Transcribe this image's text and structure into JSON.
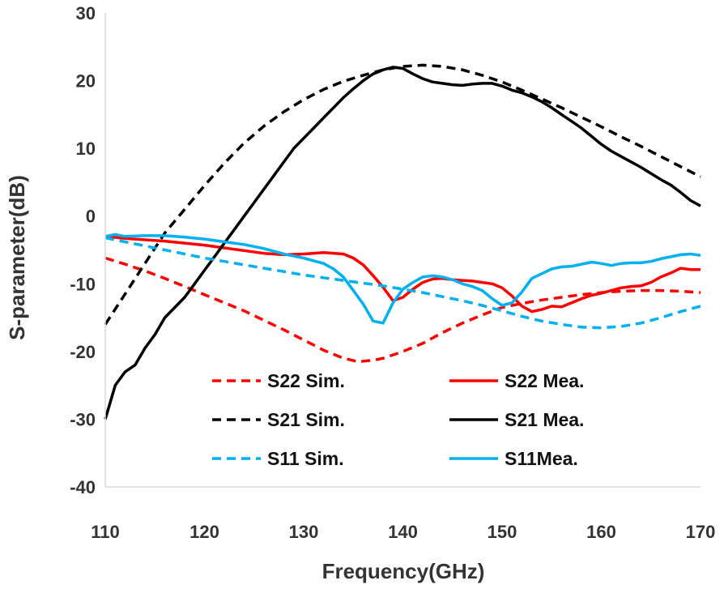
{
  "chart_data": {
    "type": "line",
    "xlabel": "Frequency(GHz)",
    "ylabel": "S-parameter(dB)",
    "xlim": [
      110,
      170
    ],
    "ylim": [
      -40,
      30
    ],
    "xticks": [
      110,
      120,
      130,
      140,
      150,
      160,
      170
    ],
    "yticks": [
      30,
      20,
      10,
      0,
      -10,
      -20,
      -30,
      -40
    ],
    "grid": false,
    "legend_position": "bottom-center",
    "series": [
      {
        "name": "S22 Sim.",
        "color": "#ff0000",
        "dash": true,
        "x": [
          110,
          112,
          114,
          116,
          118,
          120,
          122,
          124,
          126,
          128,
          130,
          132,
          134,
          135.5,
          137,
          138,
          140,
          142,
          144,
          146,
          148,
          150,
          152,
          154,
          156,
          158,
          160,
          162,
          164,
          166,
          168,
          170
        ],
        "y": [
          -6.2,
          -7.1,
          -8.1,
          -9.2,
          -10.4,
          -11.6,
          -12.8,
          -14.0,
          -15.4,
          -16.8,
          -18.3,
          -19.8,
          -21.0,
          -21.5,
          -21.3,
          -21.0,
          -20.0,
          -18.8,
          -17.2,
          -15.8,
          -14.6,
          -13.5,
          -12.9,
          -12.4,
          -12.0,
          -11.6,
          -11.3,
          -11.1,
          -11.0,
          -11.0,
          -11.1,
          -11.3
        ]
      },
      {
        "name": "S22 Mea.",
        "color": "#ff0000",
        "dash": false,
        "x": [
          110,
          112,
          114,
          116,
          118,
          120,
          122,
          124,
          126,
          128,
          130,
          132,
          134,
          135,
          136,
          137,
          138,
          139,
          140,
          141,
          142,
          143,
          144,
          145,
          146,
          147,
          148,
          149,
          150,
          151,
          152,
          153,
          154,
          155,
          156,
          157,
          158,
          159,
          160,
          161,
          162,
          163,
          164,
          165,
          166,
          167,
          168,
          169,
          170
        ],
        "y": [
          -3.0,
          -3.3,
          -3.5,
          -3.7,
          -4.0,
          -4.3,
          -4.7,
          -5.1,
          -5.5,
          -5.7,
          -5.6,
          -5.4,
          -5.6,
          -6.2,
          -7.2,
          -8.8,
          -10.5,
          -12.5,
          -12.0,
          -10.8,
          -9.8,
          -9.3,
          -9.2,
          -9.4,
          -9.5,
          -9.6,
          -9.8,
          -10.0,
          -10.6,
          -11.8,
          -13.3,
          -14.1,
          -13.8,
          -13.3,
          -13.4,
          -12.8,
          -12.2,
          -11.7,
          -11.4,
          -11.0,
          -10.6,
          -10.4,
          -10.3,
          -9.8,
          -9.0,
          -8.4,
          -7.7,
          -7.9,
          -7.9
        ]
      },
      {
        "name": "S21 Sim.",
        "color": "#000000",
        "dash": true,
        "x": [
          110,
          112,
          114,
          116,
          118,
          120,
          122,
          124,
          126,
          128,
          130,
          132,
          134,
          136,
          138,
          140,
          142,
          144,
          146,
          148,
          150,
          152,
          154,
          156,
          158,
          160,
          162,
          164,
          166,
          168,
          170
        ],
        "y": [
          -16.0,
          -11.5,
          -7.0,
          -2.5,
          1.0,
          4.5,
          7.8,
          10.8,
          13.3,
          15.4,
          17.2,
          18.7,
          19.9,
          20.8,
          21.6,
          22.1,
          22.3,
          22.1,
          21.6,
          20.8,
          19.8,
          18.6,
          17.3,
          16.0,
          14.6,
          13.2,
          11.7,
          10.3,
          8.8,
          7.3,
          5.8
        ]
      },
      {
        "name": "S21 Mea.",
        "color": "#000000",
        "dash": false,
        "x": [
          110,
          111,
          112,
          113,
          114,
          115,
          116,
          117,
          118,
          119,
          120,
          121,
          122,
          123,
          124,
          125,
          126,
          127,
          128,
          129,
          130,
          131,
          132,
          133,
          134,
          135,
          136,
          137,
          138,
          139,
          140,
          141,
          142,
          143,
          144,
          145,
          146,
          147,
          148,
          149,
          150,
          151,
          152,
          153,
          154,
          155,
          156,
          157,
          158,
          159,
          160,
          161,
          162,
          163,
          164,
          165,
          166,
          167,
          168,
          169,
          170
        ],
        "y": [
          -30.0,
          -25.0,
          -23.0,
          -22.0,
          -19.5,
          -17.5,
          -15.0,
          -13.5,
          -12.0,
          -10.0,
          -8.0,
          -6.0,
          -4.0,
          -2.0,
          0.0,
          2.0,
          4.0,
          6.0,
          8.0,
          10.0,
          11.5,
          13.0,
          14.5,
          16.0,
          17.5,
          18.8,
          20.0,
          21.0,
          21.6,
          22.0,
          21.8,
          21.0,
          20.3,
          19.8,
          19.6,
          19.4,
          19.3,
          19.5,
          19.6,
          19.6,
          19.2,
          18.6,
          18.2,
          17.6,
          16.9,
          16.0,
          15.0,
          14.0,
          13.0,
          11.8,
          10.6,
          9.6,
          8.8,
          8.0,
          7.2,
          6.3,
          5.4,
          4.6,
          3.5,
          2.3,
          1.5
        ]
      },
      {
        "name": "S11 Sim.",
        "color": "#00b0f0",
        "dash": true,
        "x": [
          110,
          112,
          114,
          116,
          118,
          120,
          122,
          124,
          126,
          128,
          130,
          132,
          134,
          136,
          138,
          140,
          142,
          144,
          146,
          148,
          150,
          152,
          154,
          156,
          158,
          160,
          162,
          164,
          166,
          168,
          170
        ],
        "y": [
          -3.2,
          -3.8,
          -4.4,
          -5.0,
          -5.6,
          -6.2,
          -6.7,
          -7.2,
          -7.7,
          -8.2,
          -8.7,
          -9.1,
          -9.5,
          -9.9,
          -10.3,
          -10.8,
          -11.3,
          -11.9,
          -12.5,
          -13.2,
          -14.0,
          -14.8,
          -15.5,
          -16.0,
          -16.4,
          -16.5,
          -16.3,
          -15.8,
          -15.0,
          -14.1,
          -13.3
        ]
      },
      {
        "name": "S11Mea.",
        "color": "#00b0f0",
        "dash": false,
        "x": [
          110,
          111,
          112,
          114,
          116,
          118,
          120,
          122,
          124,
          126,
          128,
          130,
          132,
          133,
          134,
          135,
          136,
          137,
          138,
          139,
          140,
          141,
          142,
          143,
          144,
          145,
          146,
          147,
          148,
          149,
          150,
          151,
          152,
          153,
          154,
          155,
          156,
          157,
          158,
          159,
          160,
          161,
          162,
          163,
          164,
          165,
          166,
          167,
          168,
          169,
          170
        ],
        "y": [
          -3.0,
          -2.7,
          -3.0,
          -2.9,
          -2.9,
          -3.1,
          -3.4,
          -3.8,
          -4.2,
          -4.8,
          -5.6,
          -6.2,
          -7.0,
          -7.8,
          -9.0,
          -11.0,
          -13.0,
          -15.5,
          -15.8,
          -12.8,
          -10.8,
          -9.8,
          -9.0,
          -8.8,
          -9.0,
          -9.4,
          -10.0,
          -10.4,
          -11.0,
          -12.2,
          -13.2,
          -12.8,
          -11.2,
          -9.2,
          -8.5,
          -7.8,
          -7.5,
          -7.4,
          -7.1,
          -6.8,
          -7.0,
          -7.3,
          -7.0,
          -6.9,
          -6.9,
          -6.7,
          -6.3,
          -6.0,
          -5.7,
          -5.6,
          -5.8
        ]
      }
    ]
  }
}
